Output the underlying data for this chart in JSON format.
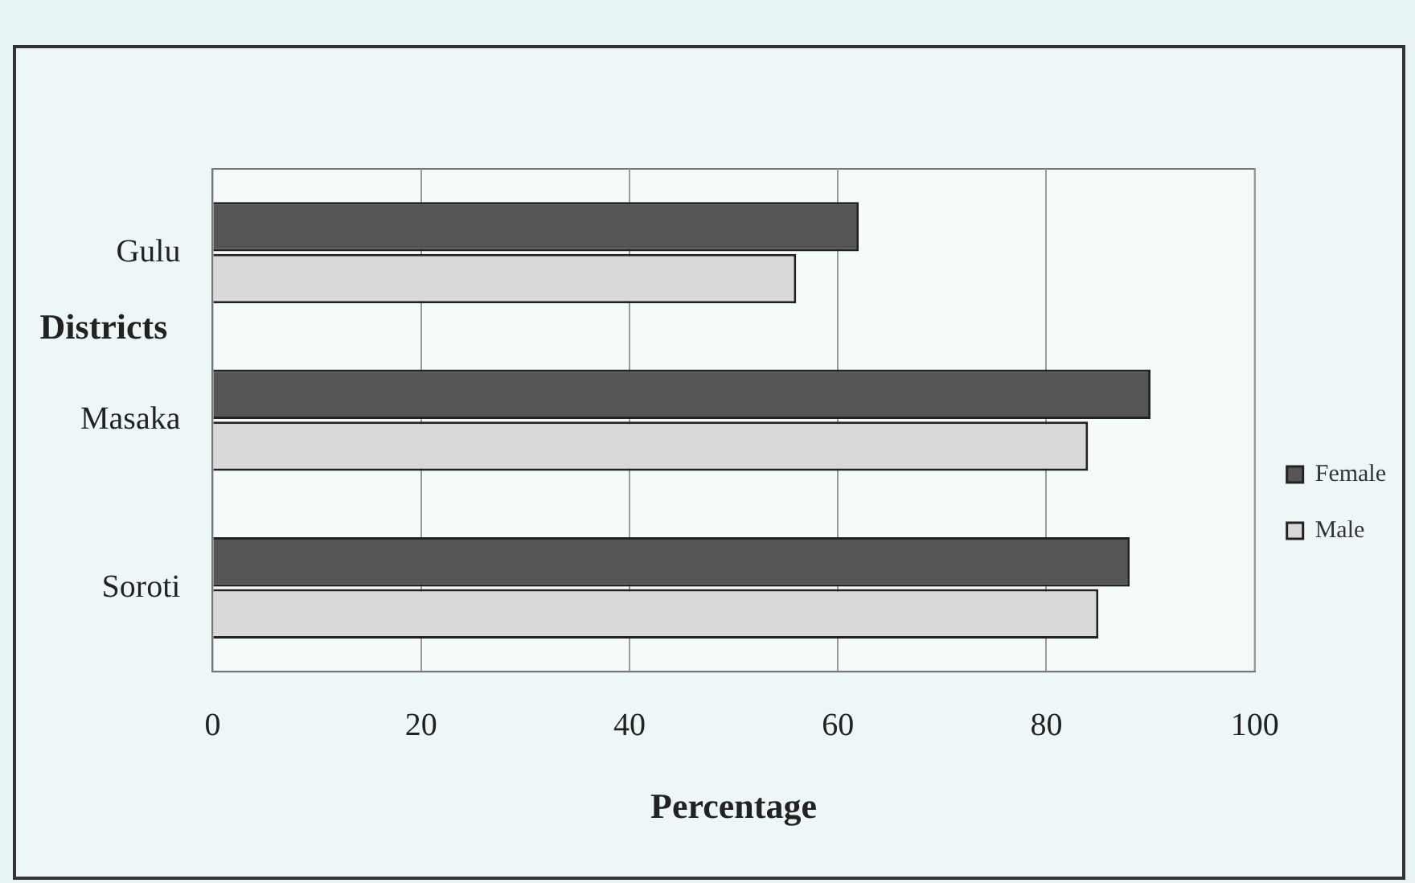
{
  "chart_data": {
    "type": "bar",
    "orientation": "horizontal",
    "xlabel": "Percentage",
    "ylabel": "Districts",
    "categories": [
      "Gulu",
      "Masaka",
      "Soroti"
    ],
    "series": [
      {
        "name": "Female",
        "color": "#555555",
        "values": [
          62,
          90,
          88
        ]
      },
      {
        "name": "Male",
        "color": "#d9d9d9",
        "values": [
          56,
          84,
          85
        ]
      }
    ],
    "xlim": [
      0,
      100
    ],
    "xticks": [
      0,
      20,
      40,
      60,
      80,
      100
    ],
    "grid": "x",
    "legend": "right"
  }
}
